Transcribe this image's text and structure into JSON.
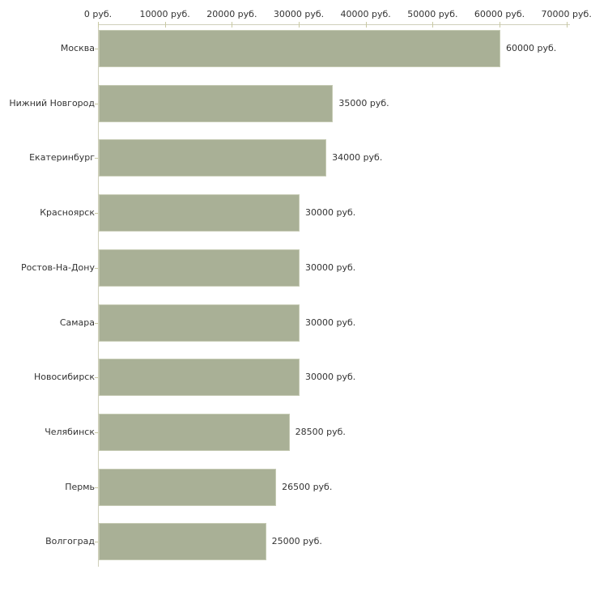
{
  "chart_data": {
    "type": "bar",
    "orientation": "horizontal",
    "title": "",
    "xlabel": "",
    "ylabel": "",
    "unit": "руб.",
    "xlim": [
      0,
      70000
    ],
    "grid": false,
    "legend": false,
    "categories": [
      "Москва",
      "Нижний Новгород",
      "Екатеринбург",
      "Красноярск",
      "Ростов-На-Дону",
      "Самара",
      "Новосибирск",
      "Челябинск",
      "Пермь",
      "Волгоград"
    ],
    "values": [
      60000,
      35000,
      34000,
      30000,
      30000,
      30000,
      30000,
      28500,
      26500,
      25000
    ],
    "value_labels": [
      "60000 руб.",
      "35000 руб.",
      "34000 руб.",
      "30000 руб.",
      "30000 руб.",
      "30000 руб.",
      "30000 руб.",
      "28500 руб.",
      "26500 руб.",
      "25000 руб."
    ],
    "x_ticks": [
      0,
      10000,
      20000,
      30000,
      40000,
      50000,
      60000,
      70000
    ],
    "x_tick_labels": [
      "0 руб.",
      "10000 руб.",
      "20000 руб.",
      "30000 руб.",
      "40000 руб.",
      "50000 руб.",
      "60000 руб.",
      "70000 руб."
    ],
    "colors": {
      "bar_fill": "#a9b096",
      "bar_edge": "#c5cab3",
      "axis_line": "#cfcfba",
      "tick": "#c9c9a3",
      "text": "#333333",
      "background": "#ffffff"
    }
  }
}
